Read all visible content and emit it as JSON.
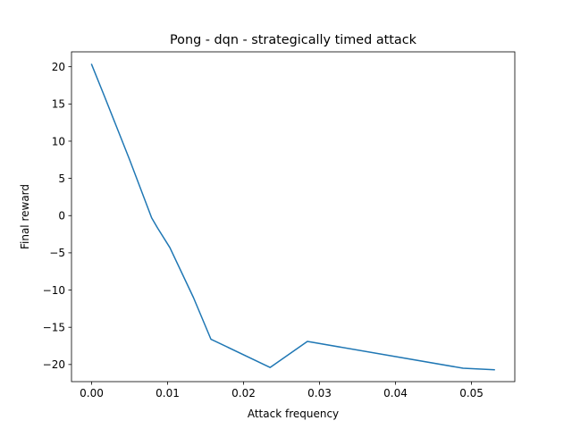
{
  "chart_data": {
    "type": "line",
    "title": "Pong - dqn - strategically timed attack",
    "xlabel": "Attack frequency",
    "ylabel": "Final reward",
    "xlim": [
      -0.00265,
      0.0557
    ],
    "ylim": [
      -22.3,
      22.0
    ],
    "xticks": [
      0.0,
      0.01,
      0.02,
      0.03,
      0.04,
      0.05
    ],
    "xtick_labels": [
      "0.00",
      "0.01",
      "0.02",
      "0.03",
      "0.04",
      "0.05"
    ],
    "yticks": [
      -20,
      -15,
      -10,
      -5,
      0,
      5,
      10,
      15,
      20
    ],
    "ytick_labels": [
      "−20",
      "−15",
      "−10",
      "−5",
      "0",
      "5",
      "10",
      "15",
      "20"
    ],
    "grid": false,
    "legend": "none",
    "series": [
      {
        "color": "#1f77b4",
        "x": [
          0.0,
          0.0017,
          0.005,
          0.0079,
          0.0087,
          0.0103,
          0.0134,
          0.0157,
          0.0235,
          0.0284,
          0.0489,
          0.053
        ],
        "y": [
          20.3,
          16.0,
          7.5,
          -0.3,
          -1.7,
          -4.3,
          -11.0,
          -16.6,
          -20.4,
          -16.9,
          -20.5,
          -20.7
        ]
      }
    ]
  }
}
